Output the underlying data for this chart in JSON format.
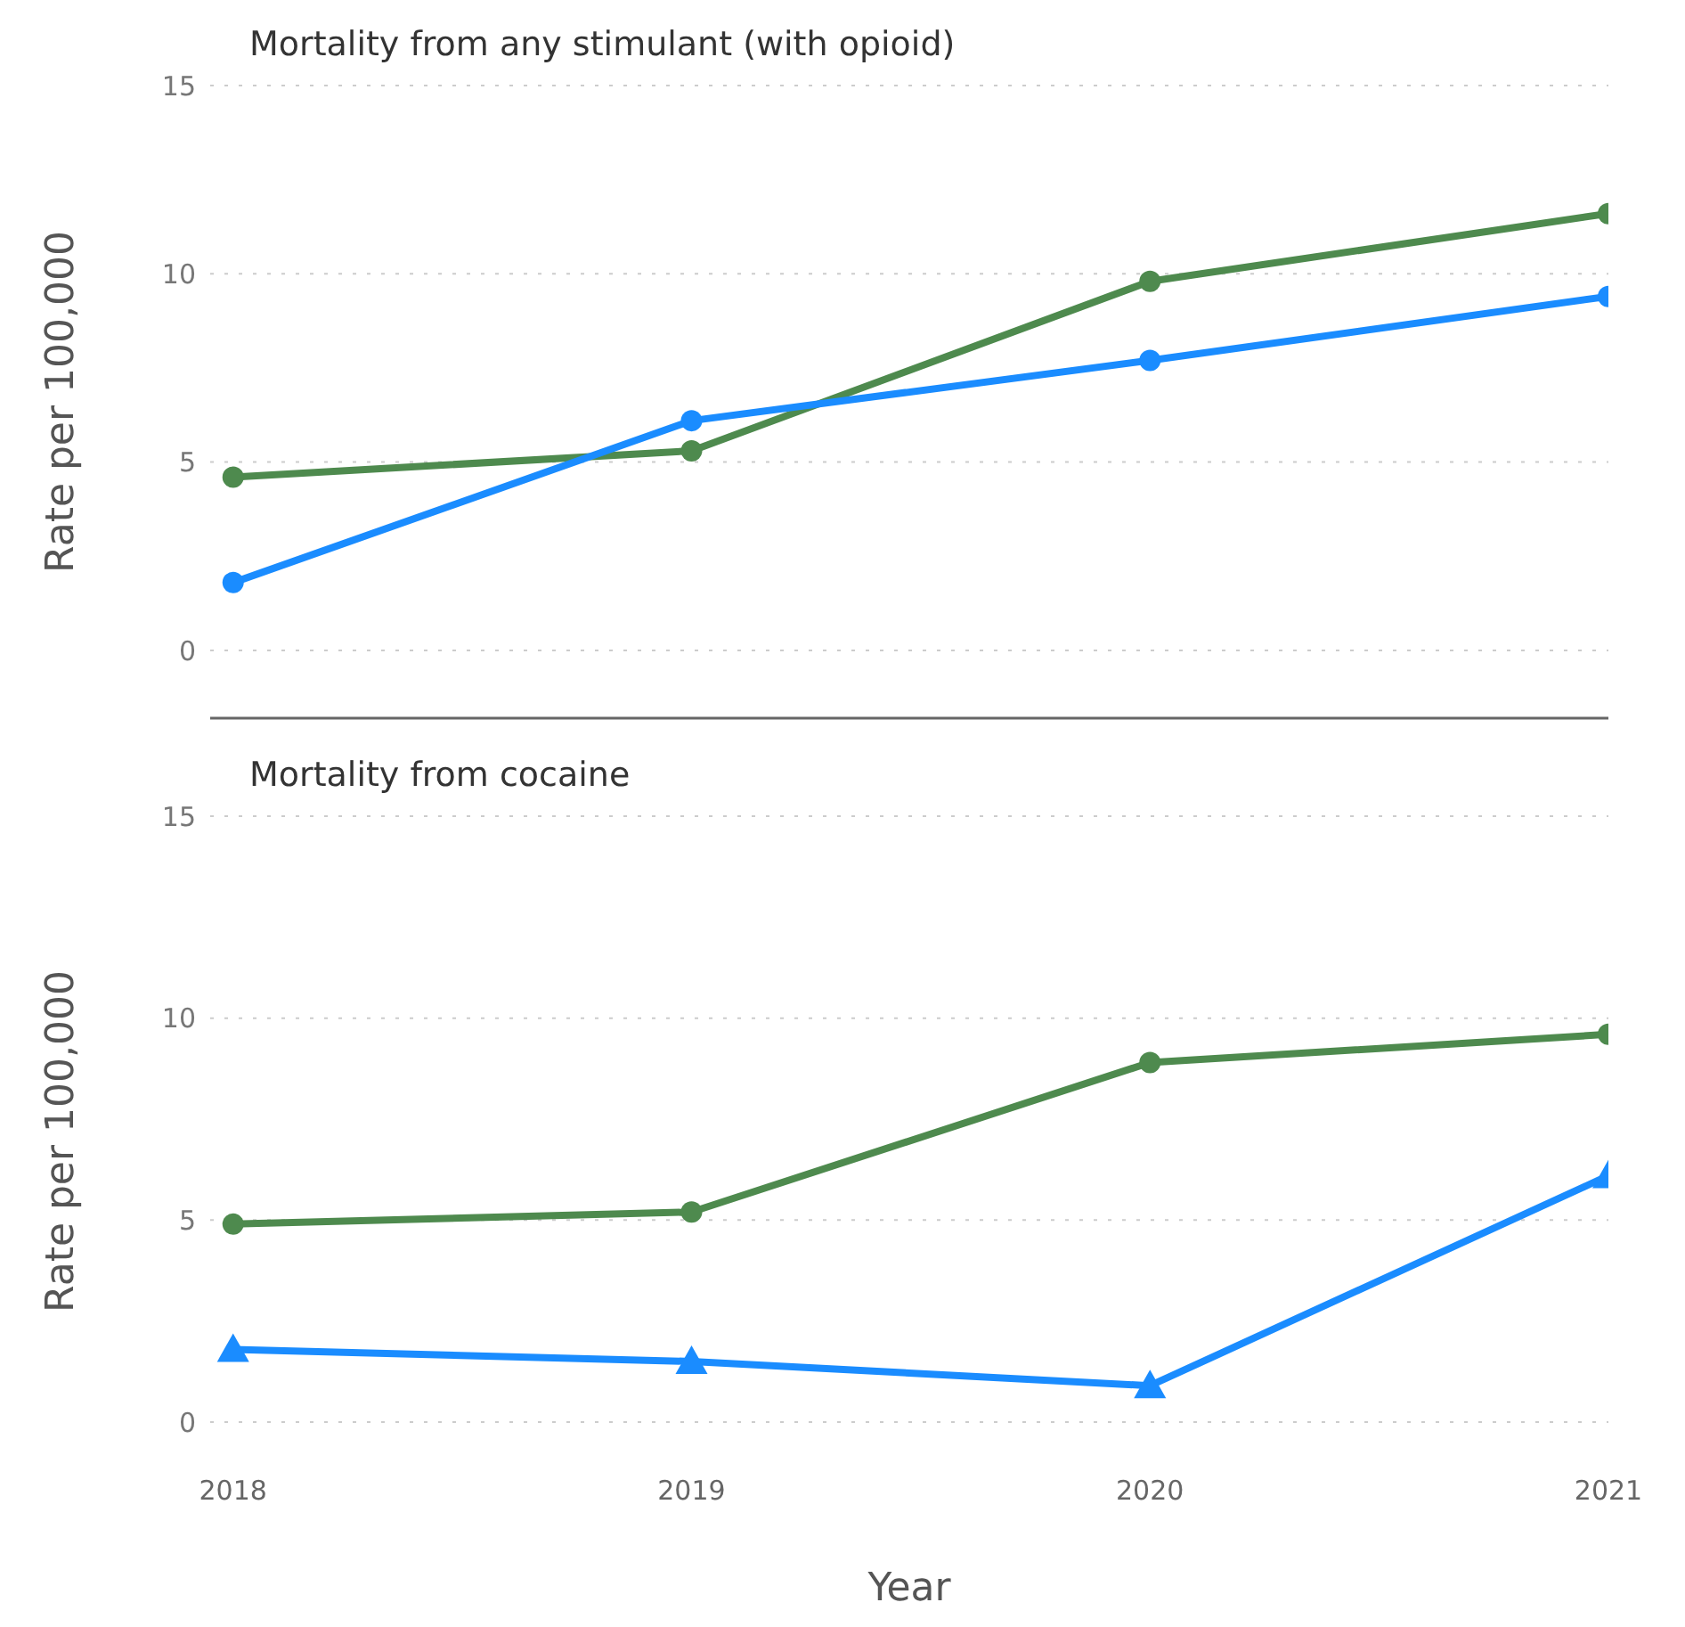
{
  "chart_data": [
    {
      "type": "line",
      "title": "Mortality from any stimulant (with opioid)",
      "ylabel": "Rate per 100,000",
      "categories": [
        "2018",
        "2019",
        "2020",
        "2021"
      ],
      "tick_labels": "y",
      "ylim": [
        -1.8,
        15
      ],
      "yticks": [
        0,
        5,
        10,
        15
      ],
      "grid": "y",
      "marker": "circle",
      "line_style": "solid",
      "series": [
        {
          "color": "#4e8a4e",
          "values": [
            4.6,
            5.3,
            9.8,
            11.6
          ]
        },
        {
          "color": "#1a8cff",
          "values": [
            1.8,
            6.1,
            7.7,
            9.4
          ]
        }
      ]
    },
    {
      "type": "line",
      "title": "Mortality from cocaine",
      "ylabel": "Rate per 100,000",
      "xlabel": "Year",
      "categories": [
        "2018",
        "2019",
        "2020",
        "2021"
      ],
      "ylim": [
        0,
        15
      ],
      "yticks": [
        0,
        5,
        10,
        15
      ],
      "grid": "y",
      "line_style": "solid",
      "series": [
        {
          "color": "#4e8a4e",
          "marker": "circle",
          "values": [
            4.9,
            5.2,
            8.9,
            9.6
          ]
        },
        {
          "color": "#1a8cff",
          "marker": "triangle",
          "values": [
            1.8,
            1.5,
            0.9,
            6.1
          ]
        }
      ]
    }
  ]
}
